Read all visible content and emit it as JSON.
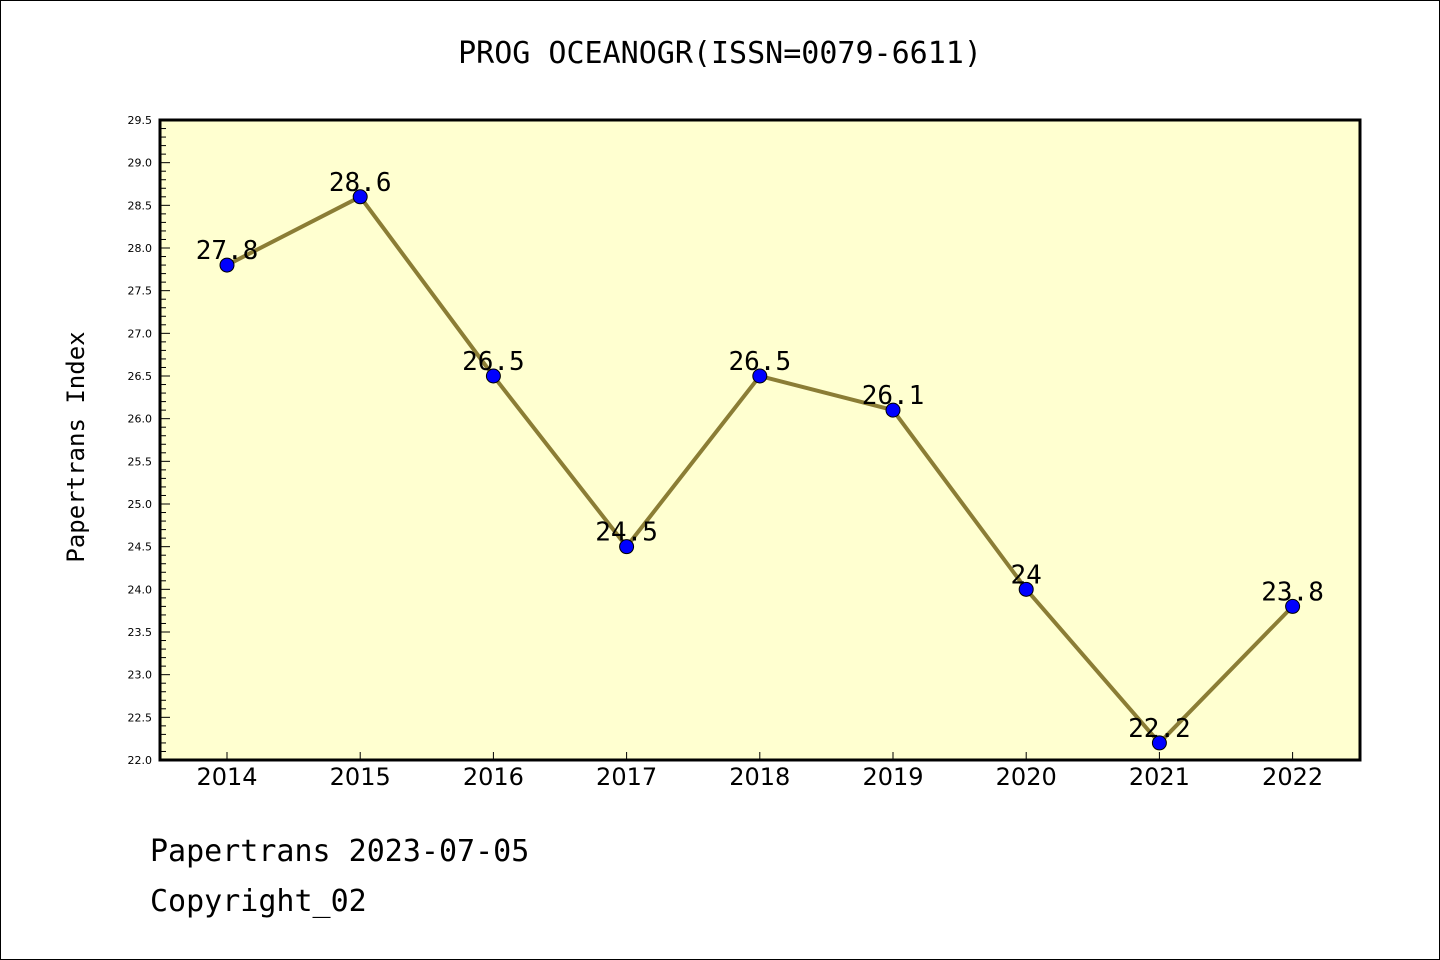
{
  "chart_data": {
    "type": "line",
    "title": "PROG OCEANOGR(ISSN=0079-6611)",
    "ylabel": "Papertrans Index",
    "xlabel": "",
    "categories": [
      "2014",
      "2015",
      "2016",
      "2017",
      "2018",
      "2019",
      "2020",
      "2021",
      "2022"
    ],
    "values": [
      27.8,
      28.6,
      26.5,
      24.5,
      26.5,
      26.1,
      24.0,
      22.2,
      23.8
    ],
    "data_labels": [
      "27.8",
      "28.6",
      "26.5",
      "24.5",
      "26.5",
      "26.1",
      "24",
      "22.2",
      "23.8"
    ],
    "ylim": [
      22.0,
      29.5
    ],
    "yticks": [
      "22.0",
      "22.5",
      "23.0",
      "23.5",
      "24.0",
      "24.5",
      "25.0",
      "25.5",
      "26.0",
      "26.5",
      "27.0",
      "27.5",
      "28.0",
      "28.5",
      "29.0",
      "29.5"
    ],
    "grid": false,
    "legend": "none",
    "colors": {
      "plot_background": "#ffffd0",
      "line": "#8b7d35",
      "marker": "#0000ff"
    }
  },
  "footer": {
    "line1": "Papertrans 2023-07-05",
    "line2": "Copyright_02"
  }
}
